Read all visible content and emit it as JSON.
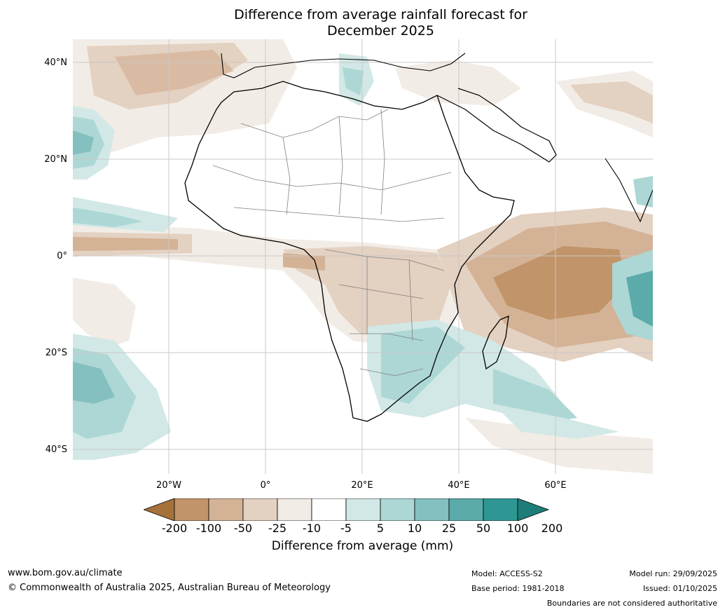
{
  "title_line1": "Difference from average rainfall forecast for",
  "title_line2": "December 2025",
  "latitude_labels": [
    "40°N",
    "20°N",
    "0°",
    "20°S",
    "40°S"
  ],
  "longitude_labels": [
    "20°W",
    "0°",
    "20°E",
    "40°E",
    "60°E"
  ],
  "colorbar": {
    "ticks": [
      "-200",
      "-100",
      "-50",
      "-25",
      "-10",
      "-5",
      "5",
      "10",
      "25",
      "50",
      "100",
      "200"
    ],
    "colors": [
      "#a6713a",
      "#c19469",
      "#d4b295",
      "#e3d1c1",
      "#f2ece6",
      "#ffffff",
      "#d1e8e6",
      "#acd7d5",
      "#84c0bf",
      "#5aaba9",
      "#2e9793",
      "#1e7d79"
    ],
    "label": "Difference from average (mm)"
  },
  "footer": {
    "website": "www.bom.gov.au/climate",
    "copyright": "© Commonwealth of Australia 2025, Australian Bureau of Meteorology",
    "model": "Model: ACCESS-S2",
    "base_period": "Base period: 1981-2018",
    "model_run": "Model run: 29/09/2025",
    "issued": "Issued: 01/10/2025",
    "disclaimer": "Boundaries are not considered authoritative"
  }
}
